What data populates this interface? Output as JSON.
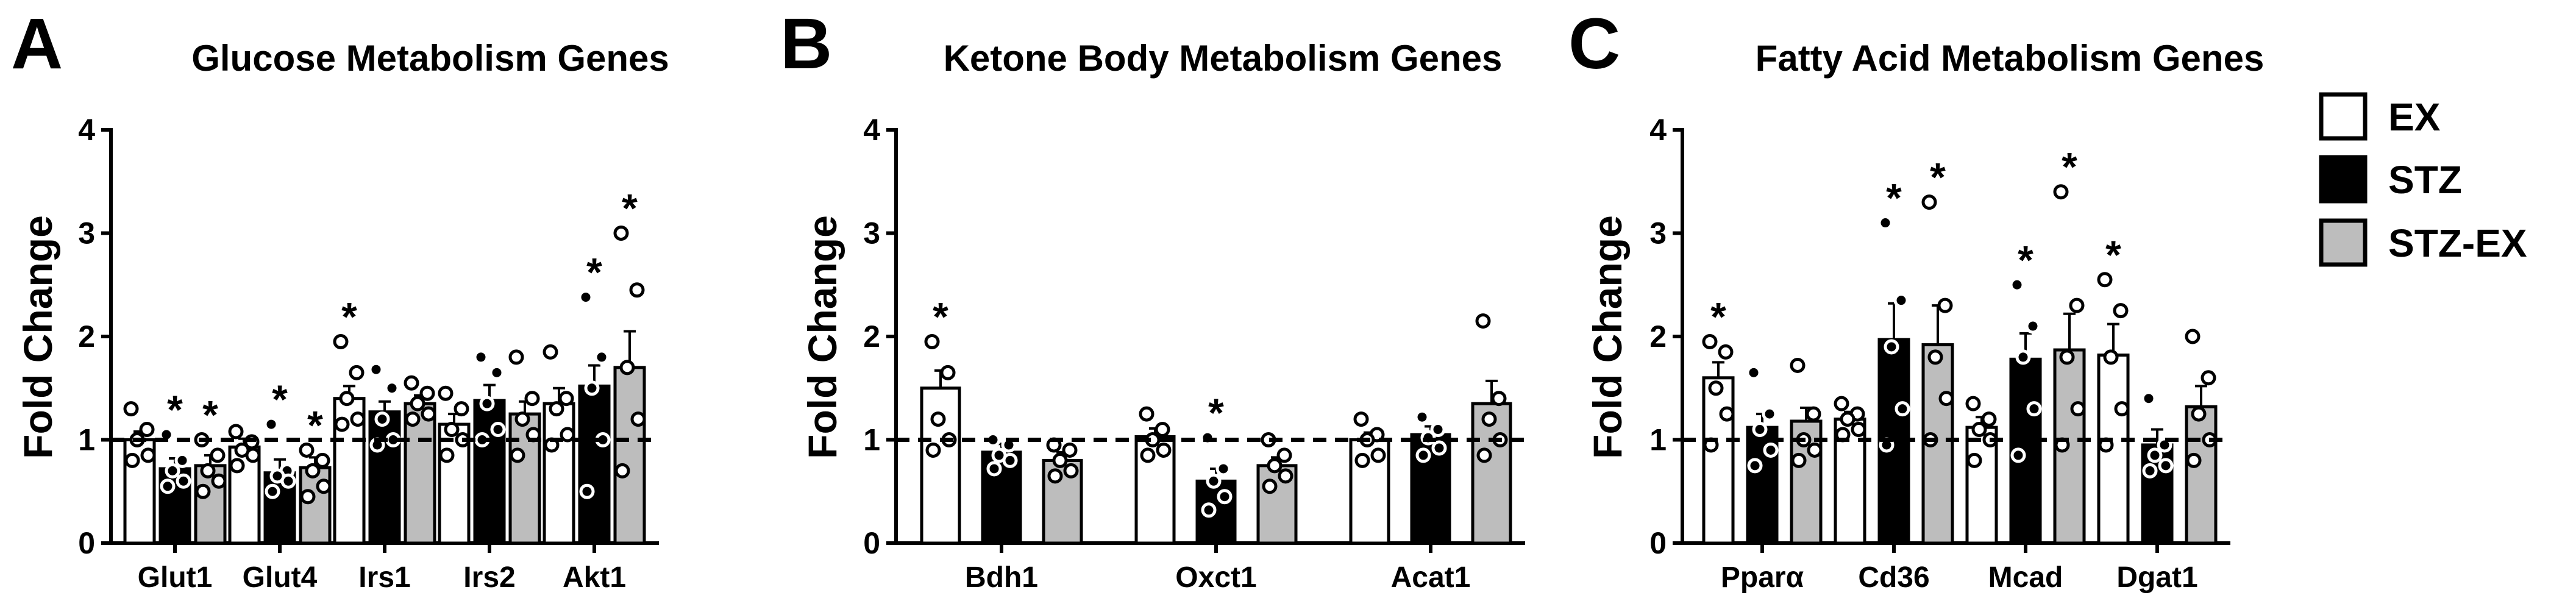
{
  "legend": [
    {
      "label": "EX",
      "color": "#ffffff"
    },
    {
      "label": "STZ",
      "color": "#000000"
    },
    {
      "label": "STZ-EX",
      "color": "#bdbdbd"
    }
  ],
  "chart_data": [
    {
      "type": "bar",
      "panel_letter": "A",
      "title": "Glucose Metabolism Genes",
      "ylabel": "Fold Change",
      "ylim": [
        0,
        4
      ],
      "yticks": [
        "0",
        "1",
        "2",
        "3",
        "4"
      ],
      "reference_line": 1,
      "categories": [
        "Glut1",
        "Glut4",
        "Irs1",
        "Irs2",
        "Akt1"
      ],
      "significance_marker": "*",
      "series": [
        {
          "name": "EX",
          "values": [
            1.0,
            0.93,
            1.4,
            1.15,
            1.35
          ],
          "errors": [
            0.08,
            0.08,
            0.12,
            0.1,
            0.15
          ],
          "points": [
            [
              1.3,
              1.1,
              1.0,
              0.85,
              0.8
            ],
            [
              1.08,
              0.98,
              0.9,
              0.85,
              0.75
            ],
            [
              1.95,
              1.65,
              1.4,
              1.2,
              1.15
            ],
            [
              1.45,
              1.3,
              1.1,
              1.0,
              0.85
            ],
            [
              1.85,
              1.4,
              1.3,
              1.05,
              0.95
            ]
          ],
          "significant": [
            false,
            false,
            true,
            false,
            false
          ]
        },
        {
          "name": "STZ",
          "values": [
            0.72,
            0.68,
            1.27,
            1.38,
            1.52
          ],
          "errors": [
            0.1,
            0.13,
            0.1,
            0.15,
            0.2
          ],
          "points": [
            [
              1.05,
              0.8,
              0.7,
              0.6,
              0.55
            ],
            [
              1.15,
              0.7,
              0.65,
              0.6,
              0.5
            ],
            [
              1.68,
              1.5,
              1.2,
              1.0,
              0.95
            ],
            [
              1.8,
              1.65,
              1.35,
              1.1,
              1.0
            ],
            [
              2.38,
              1.8,
              1.5,
              1.0,
              0.5
            ]
          ],
          "significant": [
            true,
            true,
            false,
            false,
            true
          ]
        },
        {
          "name": "STZ-EX",
          "values": [
            0.75,
            0.73,
            1.35,
            1.25,
            1.7
          ],
          "errors": [
            0.1,
            0.1,
            0.08,
            0.12,
            0.35
          ],
          "points": [
            [
              1.0,
              0.85,
              0.7,
              0.6,
              0.5
            ],
            [
              0.9,
              0.8,
              0.7,
              0.55,
              0.45
            ],
            [
              1.55,
              1.45,
              1.35,
              1.25,
              1.2
            ],
            [
              1.8,
              1.4,
              1.2,
              1.05,
              0.85
            ],
            [
              3.0,
              2.45,
              1.7,
              1.2,
              0.7
            ]
          ],
          "significant": [
            true,
            true,
            false,
            false,
            true
          ]
        }
      ]
    },
    {
      "type": "bar",
      "panel_letter": "B",
      "title": "Ketone Body Metabolism Genes",
      "ylabel": "Fold Change",
      "ylim": [
        0,
        4
      ],
      "yticks": [
        "0",
        "1",
        "2",
        "3",
        "4"
      ],
      "reference_line": 1,
      "categories": [
        "Bdh1",
        "Oxct1",
        "Acat1"
      ],
      "significance_marker": "*",
      "series": [
        {
          "name": "EX",
          "values": [
            1.5,
            1.03,
            1.0
          ],
          "errors": [
            0.17,
            0.08,
            0.07
          ],
          "points": [
            [
              1.95,
              1.65,
              1.2,
              1.0,
              0.9
            ],
            [
              1.25,
              1.1,
              1.0,
              0.9,
              0.85
            ],
            [
              1.2,
              1.05,
              1.0,
              0.85,
              0.8
            ]
          ],
          "significant": [
            true,
            false,
            false
          ]
        },
        {
          "name": "STZ",
          "values": [
            0.88,
            0.6,
            1.05
          ],
          "errors": [
            0.08,
            0.12,
            0.08
          ],
          "points": [
            [
              1.0,
              0.95,
              0.85,
              0.8,
              0.72
            ],
            [
              1.02,
              0.72,
              0.6,
              0.45,
              0.32
            ],
            [
              1.22,
              1.1,
              1.02,
              0.92,
              0.85
            ]
          ],
          "significant": [
            false,
            true,
            false
          ]
        },
        {
          "name": "STZ-EX",
          "values": [
            0.8,
            0.75,
            1.35
          ],
          "errors": [
            0.08,
            0.08,
            0.22
          ],
          "points": [
            [
              0.95,
              0.9,
              0.8,
              0.7,
              0.65
            ],
            [
              1.0,
              0.85,
              0.75,
              0.65,
              0.55
            ],
            [
              2.15,
              1.4,
              1.2,
              1.0,
              0.85
            ]
          ],
          "significant": [
            false,
            false,
            false
          ]
        }
      ]
    },
    {
      "type": "bar",
      "panel_letter": "C",
      "title": "Fatty Acid Metabolism Genes",
      "ylabel": "Fold Change",
      "ylim": [
        0,
        4
      ],
      "yticks": [
        "0",
        "1",
        "2",
        "3",
        "4"
      ],
      "reference_line": 1,
      "categories": [
        "Pparα",
        "Cd36",
        "Mcad",
        "Dgat1"
      ],
      "significance_marker": "*",
      "series": [
        {
          "name": "EX",
          "values": [
            1.6,
            1.2,
            1.12,
            1.82
          ],
          "errors": [
            0.15,
            0.07,
            0.1,
            0.3
          ],
          "points": [
            [
              1.95,
              1.85,
              1.5,
              1.25,
              0.95
            ],
            [
              1.35,
              1.25,
              1.2,
              1.1,
              1.05
            ],
            [
              1.35,
              1.2,
              1.1,
              1.0,
              0.8
            ],
            [
              2.55,
              2.25,
              1.8,
              1.3,
              0.95
            ]
          ],
          "significant": [
            true,
            false,
            false,
            true
          ]
        },
        {
          "name": "STZ",
          "values": [
            1.12,
            1.97,
            1.78,
            0.95
          ],
          "errors": [
            0.13,
            0.35,
            0.25,
            0.15
          ],
          "points": [
            [
              1.65,
              1.25,
              1.1,
              0.9,
              0.75
            ],
            [
              3.1,
              2.35,
              1.9,
              1.3,
              0.95
            ],
            [
              2.5,
              2.1,
              1.8,
              1.3,
              0.85
            ],
            [
              1.4,
              0.95,
              0.85,
              0.75,
              0.7
            ]
          ],
          "significant": [
            false,
            true,
            true,
            false
          ]
        },
        {
          "name": "STZ-EX",
          "values": [
            1.18,
            1.92,
            1.87,
            1.32
          ],
          "errors": [
            0.13,
            0.38,
            0.35,
            0.2
          ],
          "points": [
            [
              1.72,
              1.25,
              1.0,
              0.9,
              0.8
            ],
            [
              3.3,
              2.3,
              1.8,
              1.4,
              1.0
            ],
            [
              3.4,
              2.3,
              1.8,
              1.3,
              0.95
            ],
            [
              2.0,
              1.6,
              1.25,
              1.0,
              0.8
            ]
          ],
          "significant": [
            false,
            true,
            true,
            false
          ]
        }
      ]
    }
  ]
}
